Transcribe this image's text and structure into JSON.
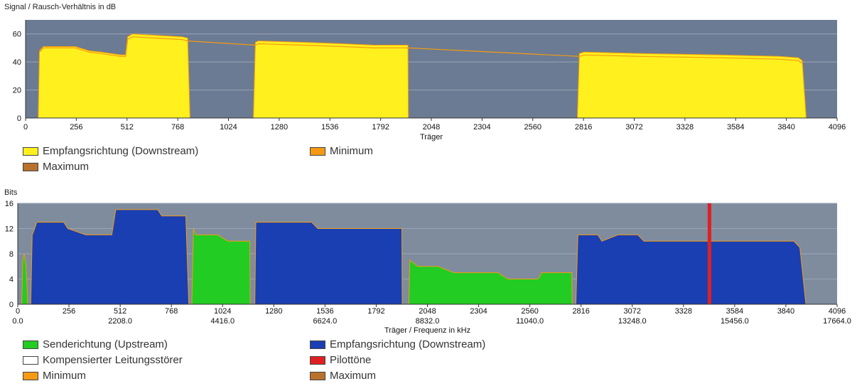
{
  "chart_data": [
    {
      "type": "area",
      "title": "Signal / Rausch-Verhältnis in dB",
      "xlabel": "Träger",
      "ylabel": "",
      "xlim": [
        0,
        4096
      ],
      "ylim": [
        0,
        70
      ],
      "x_ticks": [
        0,
        256,
        512,
        768,
        1024,
        1280,
        1536,
        1792,
        2048,
        2304,
        2560,
        2816,
        3072,
        3328,
        3584,
        3840,
        4096
      ],
      "y_ticks": [
        0,
        20,
        40,
        60
      ],
      "grid": true,
      "background_color": "#6b7b93",
      "series": [
        {
          "name": "Empfangsrichtung (Downstream)",
          "color": "#fff01e",
          "points": [
            [
              64,
              0
            ],
            [
              70,
              48
            ],
            [
              90,
              51
            ],
            [
              250,
              51
            ],
            [
              320,
              48
            ],
            [
              380,
              47
            ],
            [
              480,
              45
            ],
            [
              505,
              45
            ],
            [
              515,
              58
            ],
            [
              540,
              60
            ],
            [
              660,
              59
            ],
            [
              790,
              58
            ],
            [
              818,
              57
            ],
            [
              830,
              0
            ],
            [
              1150,
              0
            ],
            [
              1160,
              54
            ],
            [
              1175,
              55
            ],
            [
              1400,
              54
            ],
            [
              1600,
              53
            ],
            [
              1760,
              52
            ],
            [
              1930,
              52
            ],
            [
              1932,
              0
            ],
            [
              2785,
              0
            ],
            [
              2795,
              46
            ],
            [
              2820,
              47
            ],
            [
              3100,
              46
            ],
            [
              3500,
              45
            ],
            [
              3800,
              44
            ],
            [
              3900,
              43
            ],
            [
              3920,
              41
            ],
            [
              3940,
              0
            ]
          ]
        },
        {
          "name": "Minimum",
          "color": "#f59a12",
          "points": [
            [
              70,
              47
            ],
            [
              90,
              50
            ],
            [
              250,
              50
            ],
            [
              320,
              47
            ],
            [
              380,
              46
            ],
            [
              480,
              44
            ],
            [
              505,
              44
            ],
            [
              515,
              56
            ],
            [
              540,
              58
            ],
            [
              660,
              57
            ],
            [
              790,
              56
            ],
            [
              818,
              55
            ],
            [
              1160,
              52
            ],
            [
              1175,
              53
            ],
            [
              1400,
              52
            ],
            [
              1600,
              51
            ],
            [
              1760,
              50
            ],
            [
              1930,
              50
            ],
            [
              2795,
              44
            ],
            [
              2820,
              45
            ],
            [
              3100,
              44
            ],
            [
              3500,
              43
            ],
            [
              3800,
              42
            ],
            [
              3900,
              41
            ],
            [
              3920,
              39
            ]
          ]
        },
        {
          "name": "Maximum",
          "color": "#b8722c",
          "points": []
        }
      ]
    },
    {
      "type": "area",
      "title": "Bits",
      "xlabel": "Träger / Frequenz in kHz",
      "ylabel": "",
      "xlim": [
        0,
        4096
      ],
      "ylim": [
        0,
        16
      ],
      "x_ticks": [
        0,
        256,
        512,
        768,
        1024,
        1280,
        1536,
        1792,
        2048,
        2304,
        2560,
        2816,
        3072,
        3328,
        3584,
        3840,
        4096
      ],
      "x2_ticks": [
        "0.0",
        "2208.0",
        "4416.0",
        "6624.0",
        "8832.0",
        "11040.0",
        "13248.0",
        "15456.0",
        "17664.0"
      ],
      "y_ticks": [
        0,
        4,
        8,
        12,
        16
      ],
      "grid": true,
      "background_color": "#7e8c9e",
      "pilot_tone_carrier": 3456,
      "series": [
        {
          "name": "Senderichtung (Upstream)",
          "color": "#22cc22",
          "points": [
            [
              20,
              0
            ],
            [
              25,
              7
            ],
            [
              32,
              8
            ],
            [
              42,
              6
            ],
            [
              50,
              0
            ],
            [
              870,
              0
            ],
            [
              878,
              12
            ],
            [
              890,
              11
            ],
            [
              960,
              11
            ],
            [
              1000,
              11
            ],
            [
              1050,
              10
            ],
            [
              1160,
              10
            ],
            [
              1162,
              0
            ],
            [
              1955,
              0
            ],
            [
              1960,
              7
            ],
            [
              2000,
              6
            ],
            [
              2100,
              6
            ],
            [
              2180,
              5
            ],
            [
              2400,
              5
            ],
            [
              2450,
              4
            ],
            [
              2600,
              4
            ],
            [
              2620,
              5
            ],
            [
              2770,
              5
            ],
            [
              2772,
              0
            ]
          ]
        },
        {
          "name": "Empfangsrichtung (Downstream)",
          "color": "#1a3fb2",
          "points": [
            [
              65,
              0
            ],
            [
              72,
              11
            ],
            [
              85,
              12
            ],
            [
              95,
              13
            ],
            [
              230,
              13
            ],
            [
              250,
              12
            ],
            [
              340,
              11
            ],
            [
              470,
              11
            ],
            [
              490,
              15
            ],
            [
              700,
              15
            ],
            [
              720,
              14
            ],
            [
              840,
              14
            ],
            [
              855,
              0
            ],
            [
              1185,
              0
            ],
            [
              1190,
              13
            ],
            [
              1360,
              13
            ],
            [
              1470,
              13
            ],
            [
              1500,
              12
            ],
            [
              1600,
              12
            ],
            [
              1760,
              12
            ],
            [
              1920,
              12
            ],
            [
              1922,
              0
            ],
            [
              2790,
              0
            ],
            [
              2800,
              11
            ],
            [
              2900,
              11
            ],
            [
              2920,
              10
            ],
            [
              3000,
              11
            ],
            [
              3100,
              11
            ],
            [
              3130,
              10
            ],
            [
              3500,
              10
            ],
            [
              3880,
              10
            ],
            [
              3910,
              9
            ],
            [
              3940,
              0
            ]
          ]
        },
        {
          "name": "Kompensierter Leitungsstörer",
          "color": "#ffffff",
          "points": []
        },
        {
          "name": "Pilottöne",
          "color": "#e02020",
          "points": [
            [
              3456,
              0
            ],
            [
              3456,
              16
            ]
          ]
        },
        {
          "name": "Minimum",
          "color": "#f59a12",
          "points": []
        },
        {
          "name": "Maximum",
          "color": "#b8722c",
          "points": []
        }
      ]
    }
  ]
}
